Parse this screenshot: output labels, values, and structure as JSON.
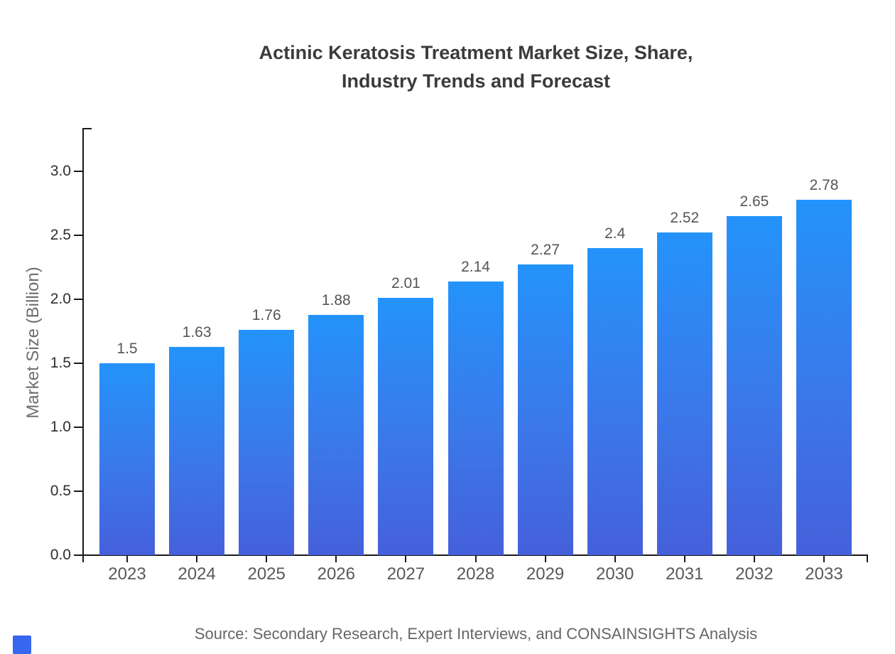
{
  "title": {
    "line1": "Actinic Keratosis Treatment Market Size, Share,",
    "line2": "Industry Trends and Forecast"
  },
  "source_note": "Source: Secondary Research, Expert Interviews, and CONSAINSIGHTS Analysis",
  "chart_data": {
    "type": "bar",
    "title": "Actinic Keratosis Treatment Market Size, Share, Industry Trends and Forecast",
    "categories": [
      "2023",
      "2024",
      "2025",
      "2026",
      "2027",
      "2028",
      "2029",
      "2030",
      "2031",
      "2032",
      "2033"
    ],
    "values": [
      1.5,
      1.63,
      1.76,
      1.88,
      2.01,
      2.14,
      2.27,
      2.4,
      2.52,
      2.65,
      2.78
    ],
    "value_labels": [
      "1.5",
      "1.63",
      "1.76",
      "1.88",
      "2.01",
      "2.14",
      "2.27",
      "2.4",
      "2.52",
      "2.65",
      "2.78"
    ],
    "xlabel": "",
    "ylabel": "Market Size (Billion)",
    "y_ticks": [
      "0.0",
      "0.5",
      "1.0",
      "1.5",
      "2.0",
      "2.5",
      "3.0"
    ],
    "ylim": [
      0,
      3.34
    ],
    "grid": false,
    "legend": "none",
    "colors": {
      "bar_top": "#2493fb",
      "bar_bottom": "#4560da",
      "axis": "#1a1a1a",
      "tick_label": "#2e2e2e",
      "category_label": "#595959",
      "value_label": "#555555",
      "title": "#3b3b3b",
      "source": "#666666",
      "brand_mark": "#3766f0"
    }
  }
}
